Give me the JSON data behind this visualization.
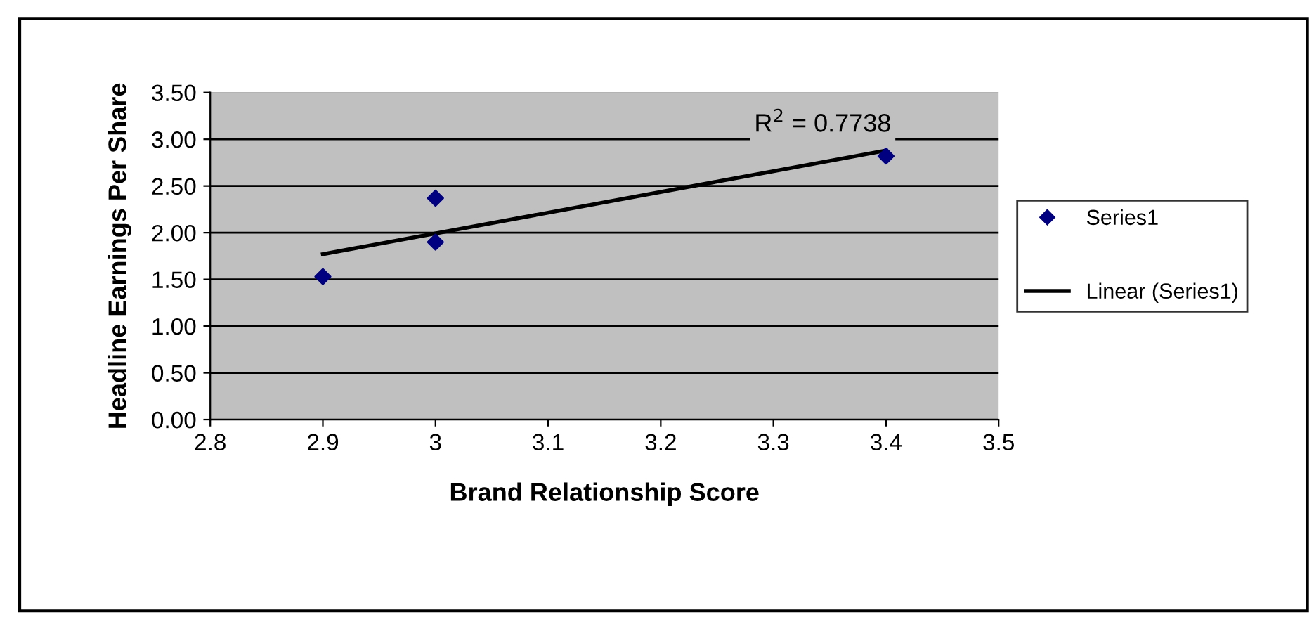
{
  "chart_data": {
    "type": "scatter",
    "xlabel": "Brand Relationship Score",
    "ylabel": "Headline Earnings Per Share",
    "xlim": [
      2.8,
      3.5
    ],
    "xticks": [
      2.8,
      2.9,
      3,
      3.1,
      3.2,
      3.3,
      3.4,
      3.5
    ],
    "ylim": [
      0,
      3.5
    ],
    "yticks": [
      {
        "value": 0,
        "label": "0.00"
      },
      {
        "value": 0.5,
        "label": "0.50"
      },
      {
        "value": 1,
        "label": "1.00"
      },
      {
        "value": 1.5,
        "label": "1.50"
      },
      {
        "value": 2,
        "label": "2.00"
      },
      {
        "value": 2.5,
        "label": "2.50"
      },
      {
        "value": 3,
        "label": "3.00"
      },
      {
        "value": 3.5,
        "label": "3.50"
      }
    ],
    "grid": "y",
    "legend": "right",
    "series": [
      {
        "name": "Series1",
        "marker": "diamond",
        "color": "#000080",
        "x": [
          2.9,
          3,
          3,
          3.4
        ],
        "values": [
          1.53,
          2.37,
          1.9,
          2.82
        ]
      },
      {
        "name": "Linear (Series1)",
        "type": "line",
        "color": "#000000",
        "x": [
          2.9,
          3.4
        ],
        "values": [
          1.77,
          2.88
        ]
      }
    ],
    "annotations": [
      "R$^{2}$ = 0.7738"
    ]
  }
}
